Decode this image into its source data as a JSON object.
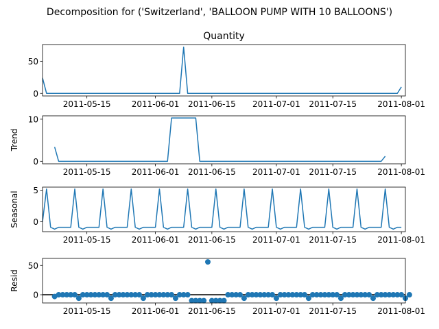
{
  "suptitle": "Decomposition for ('Switzerland', 'BALLOON PUMP WITH 10 BALLOONS')",
  "line_color": "#1f77b4",
  "chart_data": [
    {
      "type": "line",
      "title": "Quantity",
      "ylabel": "",
      "x_range": [
        "2011-05-04",
        "2011-08-02"
      ],
      "ylim": [
        -4,
        76
      ],
      "xticks": [
        "2011-05-15",
        "2011-06-01",
        "2011-06-15",
        "2011-07-01",
        "2011-07-15",
        "2011-08-01"
      ],
      "yticks": [
        0,
        50
      ],
      "start_date": "2011-05-04",
      "values": [
        24,
        0,
        0,
        0,
        0,
        0,
        0,
        0,
        0,
        0,
        0,
        0,
        0,
        0,
        0,
        0,
        0,
        0,
        0,
        0,
        0,
        0,
        0,
        0,
        0,
        0,
        0,
        0,
        0,
        0,
        0,
        0,
        0,
        0,
        0,
        72,
        0,
        0,
        0,
        0,
        0,
        0,
        0,
        0,
        0,
        0,
        0,
        0,
        0,
        0,
        0,
        0,
        0,
        0,
        0,
        0,
        0,
        0,
        0,
        0,
        0,
        0,
        0,
        0,
        0,
        0,
        0,
        0,
        0,
        0,
        0,
        0,
        0,
        0,
        0,
        0,
        0,
        0,
        0,
        0,
        0,
        0,
        0,
        0,
        0,
        0,
        0,
        0,
        0,
        10
      ]
    },
    {
      "type": "line",
      "title": "",
      "ylabel": "Trend",
      "x_range": [
        "2011-05-04",
        "2011-08-02"
      ],
      "ylim": [
        -0.6,
        10.8
      ],
      "xticks": [
        "2011-05-15",
        "2011-06-01",
        "2011-06-15",
        "2011-07-01",
        "2011-07-15",
        "2011-08-01"
      ],
      "yticks": [
        0,
        10
      ],
      "start_date": "2011-05-07",
      "values": [
        3.4,
        0,
        0,
        0,
        0,
        0,
        0,
        0,
        0,
        0,
        0,
        0,
        0,
        0,
        0,
        0,
        0,
        0,
        0,
        0,
        0,
        0,
        0,
        0,
        0,
        0,
        0,
        0,
        0,
        10.3,
        10.3,
        10.3,
        10.3,
        10.3,
        10.3,
        10.3,
        0,
        0,
        0,
        0,
        0,
        0,
        0,
        0,
        0,
        0,
        0,
        0,
        0,
        0,
        0,
        0,
        0,
        0,
        0,
        0,
        0,
        0,
        0,
        0,
        0,
        0,
        0,
        0,
        0,
        0,
        0,
        0,
        0,
        0,
        0,
        0,
        0,
        0,
        0,
        0,
        0,
        0,
        0,
        0,
        0,
        0,
        1.2
      ]
    },
    {
      "type": "line",
      "title": "",
      "ylabel": "Seasonal",
      "x_range": [
        "2011-05-04",
        "2011-08-02"
      ],
      "ylim": [
        -1.6,
        5.5
      ],
      "xticks": [
        "2011-05-15",
        "2011-06-01",
        "2011-06-15",
        "2011-07-01",
        "2011-07-15",
        "2011-08-01"
      ],
      "yticks": [
        0,
        5
      ],
      "start_date": "2011-05-04",
      "values": [
        0,
        5.2,
        -0.9,
        -1.2,
        -0.9,
        -0.9,
        -0.9,
        -0.9,
        5.2,
        -0.9,
        -1.2,
        -0.9,
        -0.9,
        -0.9,
        -0.9,
        5.2,
        -0.9,
        -1.2,
        -0.9,
        -0.9,
        -0.9,
        -0.9,
        5.2,
        -0.9,
        -1.2,
        -0.9,
        -0.9,
        -0.9,
        -0.9,
        5.2,
        -0.9,
        -1.2,
        -0.9,
        -0.9,
        -0.9,
        -0.9,
        5.2,
        -0.9,
        -1.2,
        -0.9,
        -0.9,
        -0.9,
        -0.9,
        5.2,
        -0.9,
        -1.2,
        -0.9,
        -0.9,
        -0.9,
        -0.9,
        5.2,
        -0.9,
        -1.2,
        -0.9,
        -0.9,
        -0.9,
        -0.9,
        5.2,
        -0.9,
        -1.2,
        -0.9,
        -0.9,
        -0.9,
        -0.9,
        5.2,
        -0.9,
        -1.2,
        -0.9,
        -0.9,
        -0.9,
        -0.9,
        5.2,
        -0.9,
        -1.2,
        -0.9,
        -0.9,
        -0.9,
        -0.9,
        5.2,
        -0.9,
        -1.2,
        -0.9,
        -0.9,
        -0.9,
        -0.9,
        5.2,
        -0.9,
        -1.2,
        -0.9,
        -0.9
      ]
    },
    {
      "type": "scatter",
      "title": "",
      "ylabel": "Resid",
      "x_range": [
        "2011-05-04",
        "2011-08-02"
      ],
      "ylim": [
        -14,
        62
      ],
      "xticks": [
        "2011-05-15",
        "2011-06-01",
        "2011-06-15",
        "2011-07-01",
        "2011-07-15",
        "2011-08-01"
      ],
      "yticks": [
        0,
        50
      ],
      "zero_line": true,
      "start_date": "2011-05-07",
      "values": [
        -3,
        0,
        0,
        0,
        0,
        0,
        -6,
        0,
        0,
        0,
        0,
        0,
        0,
        0,
        -6,
        0,
        0,
        0,
        0,
        0,
        0,
        0,
        -6,
        0,
        0,
        0,
        0,
        0,
        0,
        0,
        -6,
        0,
        0,
        0,
        -10,
        -10,
        -10,
        -10,
        56,
        -10,
        -10,
        -10,
        -10,
        0,
        0,
        0,
        0,
        -6,
        0,
        0,
        0,
        0,
        0,
        0,
        0,
        -6,
        0,
        0,
        0,
        0,
        0,
        0,
        0,
        -6,
        0,
        0,
        0,
        0,
        0,
        0,
        0,
        -6,
        0,
        0,
        0,
        0,
        0,
        0,
        0,
        -6,
        0,
        0,
        0,
        0,
        0,
        0,
        0,
        -6,
        0
      ]
    }
  ]
}
